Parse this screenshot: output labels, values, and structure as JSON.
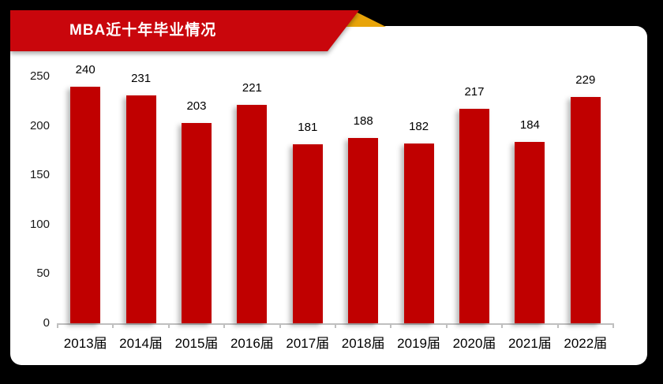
{
  "banner": {
    "title": "MBA近十年毕业情况"
  },
  "colors": {
    "page_bg": "#000000",
    "card_bg": "#FFFFFF",
    "ribbon": "#C9060C",
    "fold": "#E8A409",
    "bar": "#C00000",
    "axis_line": "#BFBFBF",
    "label_text": "#1A1A1A"
  },
  "chart_data": {
    "type": "bar",
    "title": "MBA近十年毕业情况",
    "categories": [
      "2013届",
      "2014届",
      "2015届",
      "2016届",
      "2017届",
      "2018届",
      "2019届",
      "2020届",
      "2021届",
      "2022届"
    ],
    "values": [
      240,
      231,
      203,
      221,
      181,
      188,
      182,
      217,
      184,
      229
    ],
    "y_ticks": [
      0,
      50,
      100,
      150,
      200,
      250
    ],
    "ylim": [
      0,
      250
    ],
    "xlabel": "",
    "ylabel": "",
    "grid": false,
    "legend": false,
    "data_labels": true
  }
}
